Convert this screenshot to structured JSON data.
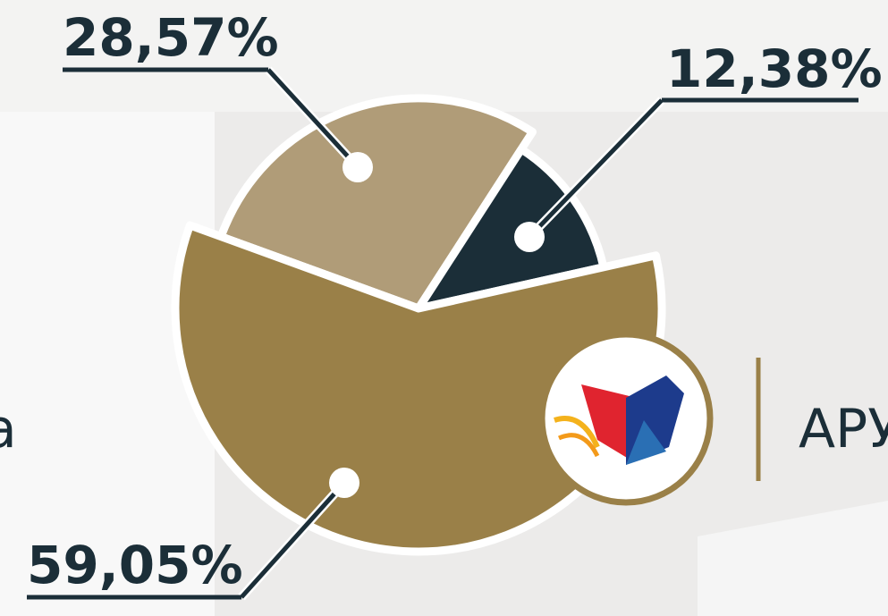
{
  "chart_data": {
    "type": "pie",
    "values": [
      28.57,
      12.38,
      59.05
    ],
    "value_labels": [
      "28,57%",
      "12,38%",
      "59,05%"
    ],
    "colors": [
      "#b09c78",
      "#1b2e38",
      "#9a8048"
    ],
    "annotations": [
      "АРУ",
      "а"
    ]
  }
}
